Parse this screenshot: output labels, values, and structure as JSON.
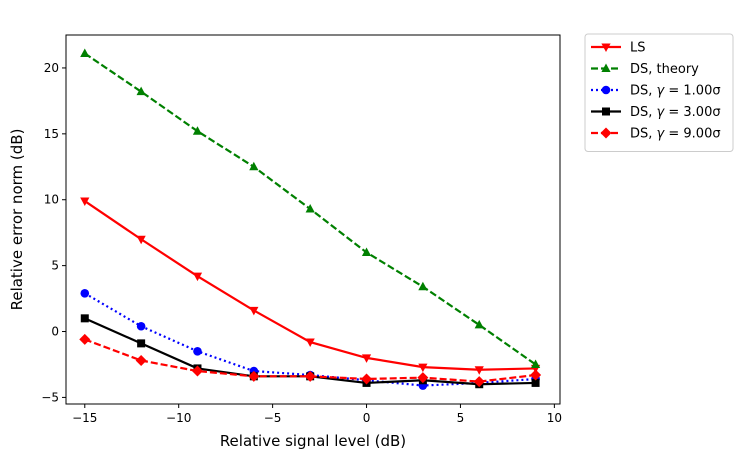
{
  "chart_data": {
    "type": "line",
    "title": "",
    "xlabel": "Relative signal level (dB)",
    "ylabel": "Relative error norm (dB)",
    "xlim": [
      -16,
      10.3
    ],
    "ylim": [
      -5.5,
      22.5
    ],
    "xticks": [
      -15,
      -10,
      -5,
      0,
      5,
      10
    ],
    "yticks": [
      -5,
      0,
      5,
      10,
      15,
      20
    ],
    "grid": false,
    "legend_placement": "outside-top-right",
    "x": [
      -15,
      -12,
      -9,
      -6,
      -3,
      0,
      3,
      6,
      9
    ],
    "series": [
      {
        "name": "LS",
        "name_prefix": "LS",
        "name_sym": "",
        "name_suffix": "",
        "color": "#ff0000",
        "linestyle": "solid",
        "marker": "triangle-down",
        "values": [
          9.9,
          7.0,
          4.2,
          1.6,
          -0.8,
          -2.0,
          -2.7,
          -2.9,
          -2.8
        ]
      },
      {
        "name": "DS, theory",
        "name_prefix": "DS, theory",
        "name_sym": "",
        "name_suffix": "",
        "color": "#008000",
        "linestyle": "dashed",
        "marker": "triangle-up",
        "values": [
          21.1,
          18.2,
          15.2,
          12.5,
          9.3,
          6.0,
          3.4,
          0.5,
          -2.5
        ]
      },
      {
        "name": "DS, γ = 1.00σ",
        "name_prefix": "DS, ",
        "name_sym": "γ",
        "name_suffix": " = 1.00σ",
        "color": "#0000ff",
        "linestyle": "dotted",
        "marker": "circle",
        "values": [
          2.9,
          0.4,
          -1.5,
          -3.0,
          -3.3,
          -3.7,
          -4.1,
          -3.9,
          -3.6
        ]
      },
      {
        "name": "DS, γ = 3.00σ",
        "name_prefix": "DS, ",
        "name_sym": "γ",
        "name_suffix": " = 3.00σ",
        "color": "#000000",
        "linestyle": "solid",
        "marker": "square",
        "values": [
          1.0,
          -0.9,
          -2.8,
          -3.4,
          -3.4,
          -3.9,
          -3.7,
          -4.0,
          -3.9
        ]
      },
      {
        "name": "DS, γ = 9.00σ",
        "name_prefix": "DS, ",
        "name_sym": "γ",
        "name_suffix": " = 9.00σ",
        "color": "#ff0000",
        "linestyle": "dashed",
        "marker": "diamond",
        "values": [
          -0.6,
          -2.2,
          -3.0,
          -3.4,
          -3.4,
          -3.6,
          -3.5,
          -3.8,
          -3.3
        ]
      }
    ]
  }
}
